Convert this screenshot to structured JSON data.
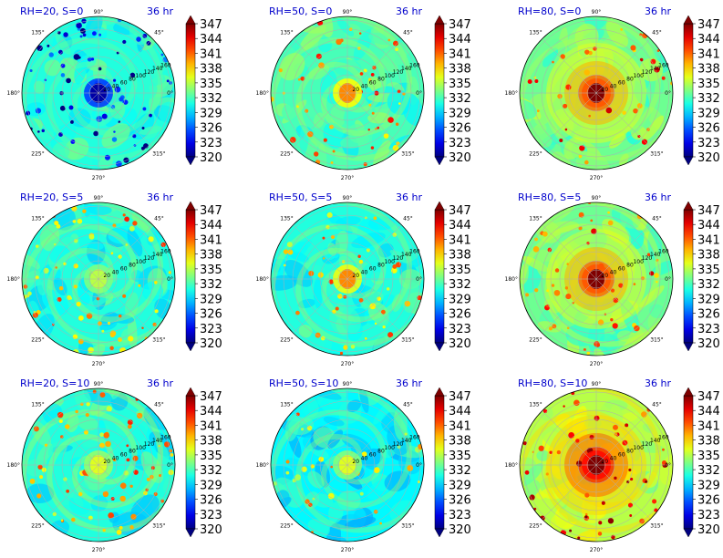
{
  "chart_data": {
    "type": "heatmap",
    "layout": {
      "rows": 3,
      "cols": 3
    },
    "projection": "polar",
    "colormap": "jet",
    "colorbar": {
      "min": 320,
      "max": 347,
      "ticks": [
        "320",
        "323",
        "326",
        "329",
        "332",
        "335",
        "338",
        "341",
        "344",
        "347"
      ],
      "extend": "both"
    },
    "angle_tick_labels": [
      "0°",
      "45°",
      "90°",
      "135°",
      "180°",
      "225°",
      "270°",
      "315°"
    ],
    "radial_tick_labels": [
      "20",
      "40",
      "60",
      "80",
      "100",
      "120",
      "140",
      "160"
    ],
    "panels": [
      {
        "label": "RH=20, S=0",
        "time": "36 hr",
        "rh": 20,
        "s": 0,
        "base": 331,
        "core": -10,
        "rings": false,
        "spiral": 0.2,
        "spots": 70,
        "spot_bias": -1
      },
      {
        "label": "RH=50, S=0",
        "time": "36 hr",
        "rh": 50,
        "s": 0,
        "base": 332,
        "core": 8,
        "rings": false,
        "spiral": 0.4,
        "spots": 50,
        "spot_bias": 1
      },
      {
        "label": "RH=80, S=0",
        "time": "36 hr",
        "rh": 80,
        "s": 0,
        "base": 333,
        "core": 14,
        "rings": true,
        "spiral": 0.2,
        "spots": 40,
        "spot_bias": 1
      },
      {
        "label": "RH=20, S=5",
        "time": "36 hr",
        "rh": 20,
        "s": 5,
        "base": 331,
        "core": 4,
        "rings": false,
        "spiral": 0.6,
        "spots": 70,
        "spot_bias": 1
      },
      {
        "label": "RH=50, S=5",
        "time": "36 hr",
        "rh": 50,
        "s": 5,
        "base": 331,
        "core": 9,
        "rings": false,
        "spiral": 0.6,
        "spots": 45,
        "spot_bias": 1
      },
      {
        "label": "RH=80, S=5",
        "time": "36 hr",
        "rh": 80,
        "s": 5,
        "base": 333,
        "core": 14,
        "rings": true,
        "spiral": 0.5,
        "spots": 50,
        "spot_bias": 1
      },
      {
        "label": "RH=20, S=10",
        "time": "36 hr",
        "rh": 20,
        "s": 10,
        "base": 331,
        "core": 5,
        "rings": false,
        "spiral": 0.8,
        "spots": 70,
        "spot_bias": 1
      },
      {
        "label": "RH=50, S=10",
        "time": "36 hr",
        "rh": 50,
        "s": 10,
        "base": 330,
        "core": 6,
        "rings": false,
        "spiral": 0.8,
        "spots": 30,
        "spot_bias": 1
      },
      {
        "label": "RH=80, S=10",
        "time": "36 hr",
        "rh": 80,
        "s": 10,
        "base": 335,
        "core": 14,
        "rings": true,
        "spiral": 0.6,
        "spots": 55,
        "spot_bias": 1
      }
    ]
  }
}
